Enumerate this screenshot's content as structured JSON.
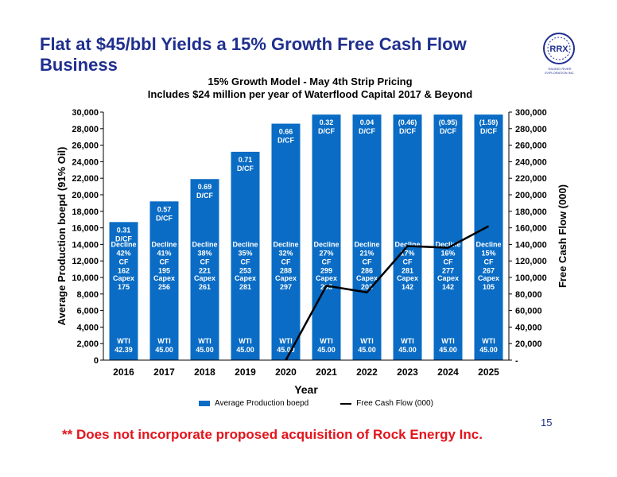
{
  "headline": "Flat at $45/bbl Yields a 15% Growth Free Cash Flow Business",
  "logo": {
    "name": "RRX",
    "tagline": "RAGING RIVER EXPLORATION INC."
  },
  "footnote": "** Does not incorporate proposed acquisition of Rock Energy Inc.",
  "page_number": "15",
  "colors": {
    "bar": "#0a6cc4",
    "line": "#000000",
    "headline": "#1f2f8f",
    "footnote": "#e3141c"
  },
  "chart_data": {
    "type": "bar",
    "title": "15% Growth Model - May 4th Strip Pricing",
    "subtitle": "Includes $24 million per year of Waterflood Capital 2017 & Beyond",
    "xlabel": "Year",
    "ylabel": "Average Production boepd (91% Oil)",
    "y2label": "Free Cash Flow (000)",
    "ylim": [
      0,
      30000
    ],
    "y2lim": [
      0,
      300000
    ],
    "yticks": [
      "0",
      "2,000",
      "4,000",
      "6,000",
      "8,000",
      "10,000",
      "12,000",
      "14,000",
      "16,000",
      "18,000",
      "20,000",
      "22,000",
      "24,000",
      "26,000",
      "28,000",
      "30,000"
    ],
    "y2ticks": [
      "-",
      "20,000",
      "40,000",
      "60,000",
      "80,000",
      "100,000",
      "120,000",
      "140,000",
      "160,000",
      "180,000",
      "200,000",
      "220,000",
      "240,000",
      "260,000",
      "280,000",
      "300,000"
    ],
    "categories": [
      "2016",
      "2017",
      "2018",
      "2019",
      "2020",
      "2021",
      "2022",
      "2023",
      "2024",
      "2025"
    ],
    "series": [
      {
        "name": "Average Production boepd",
        "kind": "bar",
        "values": [
          16700,
          19200,
          21900,
          25200,
          28600,
          29700,
          29700,
          29700,
          29700,
          29700
        ]
      },
      {
        "name": "Free Cash Flow (000)",
        "kind": "line",
        "values": [
          null,
          null,
          null,
          null,
          -2000,
          90000,
          82000,
          138000,
          136000,
          162000
        ]
      }
    ],
    "bar_labels": {
      "dcf": [
        "0.31\nD/CF",
        "0.57\nD/CF",
        "0.69\nD/CF",
        "0.71\nD/CF",
        "0.66\nD/CF",
        "0.32\nD/CF",
        "0.04\nD/CF",
        "(0.46)\nD/CF",
        "(0.95)\nD/CF",
        "(1.59)\nD/CF"
      ],
      "decline": [
        "Decline\n42%",
        "Decline\n41%",
        "Decline\n38%",
        "Decline\n35%",
        "Decline\n32%",
        "Decline\n27%",
        "Decline\n21%",
        "Decline\n17%",
        "Decline\n16%",
        "Decline\n15%"
      ],
      "cf": [
        "CF\n162",
        "CF\n195",
        "CF\n221",
        "CF\n253",
        "CF\n288",
        "CF\n299",
        "CF\n286",
        "CF\n281",
        "CF\n277",
        "CF\n267"
      ],
      "capex": [
        "Capex\n175",
        "Capex\n256",
        "Capex\n261",
        "Capex\n281",
        "Capex\n297",
        "Capex\n203",
        "Capex\n203",
        "Capex\n142",
        "Capex\n142",
        "Capex\n105"
      ],
      "wti": [
        "WTI\n42.39",
        "WTI\n45.00",
        "WTI\n45.00",
        "WTI\n45.00",
        "WTI\n45.00",
        "WTI\n45.00",
        "WTI\n45.00",
        "WTI\n45.00",
        "WTI\n45.00",
        "WTI\n45.00"
      ]
    },
    "legend_position": "bottom",
    "grid": false
  }
}
